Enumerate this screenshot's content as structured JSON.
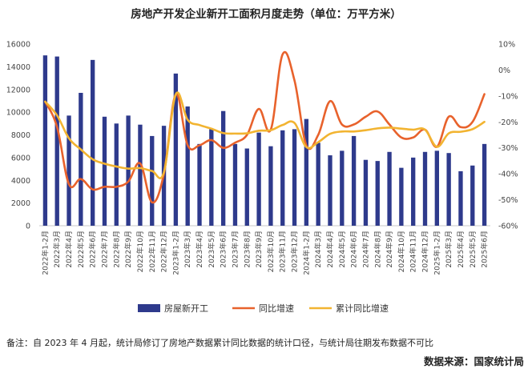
{
  "chart_data": {
    "type": "bar+line",
    "title": "房地产开发企业新开工面积月度走势（单位：万平方米）",
    "categories": [
      "2022年1-2月",
      "2022年3月",
      "2022年4月",
      "2022年5月",
      "2022年6月",
      "2022年7月",
      "2022年8月",
      "2022年9月",
      "2022年10月",
      "2022年11月",
      "2022年12月",
      "2023年1-2月",
      "2023年3月",
      "2023年4月",
      "2023年5月",
      "2023年6月",
      "2023年7月",
      "2023年8月",
      "2023年9月",
      "2023年10月",
      "2023年11月",
      "2023年12月",
      "2024年1-2月",
      "2024年3月",
      "2024年4月",
      "2024年5月",
      "2024年6月",
      "2024年7月",
      "2024年8月",
      "2024年9月",
      "2024年10月",
      "2024年11月",
      "2024年12月",
      "2025年1-2月",
      "2025年3月",
      "2025年4月",
      "2025年5月",
      "2025年6月"
    ],
    "series": [
      {
        "name": "房屋新开工",
        "type": "bar",
        "axis": "left",
        "color": "#2e3a8c",
        "values": [
          15000,
          14900,
          9700,
          11700,
          14600,
          9600,
          9000,
          9700,
          8900,
          7900,
          8800,
          13400,
          10500,
          7200,
          8500,
          10100,
          7200,
          6800,
          8200,
          7000,
          8400,
          8500,
          9400,
          7300,
          6200,
          6600,
          7900,
          5800,
          5700,
          6500,
          5100,
          6000,
          6500,
          6600,
          6400,
          4800,
          5300,
          7200
        ]
      },
      {
        "name": "同比增速",
        "type": "line",
        "axis": "right",
        "color": "#e8622c",
        "values": [
          -12.2,
          -22,
          -44,
          -42,
          -46,
          -45,
          -45,
          -43,
          -36,
          -51,
          -40,
          -9.4,
          -29,
          -29,
          -27,
          -30,
          -28,
          -25,
          -15,
          -23,
          6,
          -4,
          -29,
          -25,
          -12,
          -21,
          -21,
          -18,
          -16,
          -21,
          -26,
          -26,
          -23,
          -29.6,
          -18,
          -22,
          -20,
          -9.3
        ]
      },
      {
        "name": "累计同比增速",
        "type": "line",
        "axis": "right",
        "color": "#f2b431",
        "values": [
          -12.2,
          -17.5,
          -26.3,
          -30.6,
          -34.4,
          -36.1,
          -37.2,
          -38,
          -37.8,
          -38.9,
          -39.4,
          -9.4,
          -19.2,
          -21.2,
          -22.6,
          -24.3,
          -24.5,
          -24.4,
          -23.4,
          -23.2,
          -21.2,
          -20.4,
          -29.7,
          -27.8,
          -24.6,
          -23.7,
          -23.7,
          -23.2,
          -22.5,
          -22.2,
          -22.6,
          -23,
          -23,
          -29.6,
          -24.4,
          -23.8,
          -22.8,
          -20
        ]
      }
    ],
    "yleft": {
      "min": 0,
      "max": 16000,
      "ticks": [
        0,
        2000,
        4000,
        6000,
        8000,
        10000,
        12000,
        14000,
        16000
      ]
    },
    "yright": {
      "min": -60,
      "max": 10,
      "ticks": [
        "-60%",
        "-50%",
        "-40%",
        "-30%",
        "-20%",
        "-10%",
        "0%",
        "10%"
      ]
    },
    "legend": {
      "position": "bottom"
    }
  },
  "note": "备注：自 2023 年 4 月起，统计局修订了房地产数据累计同比数据的统计口径，与统计局往期发布数据不可比",
  "source": "数据来源：国家统计局"
}
